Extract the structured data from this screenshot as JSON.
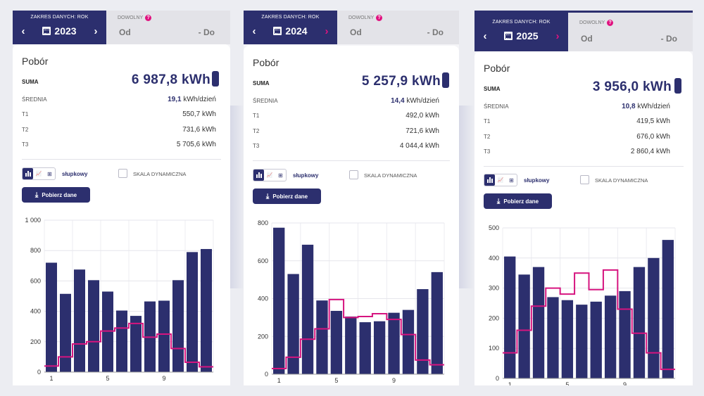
{
  "common": {
    "range_label": "ZAKRES DANYCH: ROK",
    "free_label": "DOWOLNY",
    "from_label": "Od",
    "to_label": "- Do",
    "card_title": "Pobór",
    "sum_label": "SUMA",
    "avg_label": "ŚREDNIA",
    "avg_unit": "kWh/dzień",
    "t1_label": "T1",
    "t2_label": "T2",
    "t3_label": "T3",
    "chart_mode_label": "słupkowy",
    "dynamic_scale_label": "SKALA DYNAMICZNA",
    "download_label": "Pobierz dane",
    "help_icon": "?",
    "prev_icon": "‹",
    "next_icon": "›",
    "line_icon": "📈",
    "table_icon": "⊞",
    "download_icon": "⤓",
    "colors": {
      "bar": "#2c2f6e",
      "line": "#d6147f",
      "accent": "#e0127f"
    }
  },
  "panels": [
    {
      "year": "2023",
      "sum": "6 987,8 kWh",
      "avg_value": "19,1",
      "t1": "550,7 kWh",
      "t2": "731,6 kWh",
      "t3": "5 705,6 kWh"
    },
    {
      "year": "2024",
      "sum": "5 257,9 kWh",
      "avg_value": "14,4",
      "t1": "492,0 kWh",
      "t2": "721,6 kWh",
      "t3": "4 044,4 kWh"
    },
    {
      "year": "2025",
      "sum": "3 956,0 kWh",
      "avg_value": "10,8",
      "t1": "419,5 kWh",
      "t2": "676,0 kWh",
      "t3": "2 860,4 kWh"
    }
  ],
  "chart_data": [
    {
      "type": "bar",
      "x": [
        1,
        2,
        3,
        4,
        5,
        6,
        7,
        8,
        9,
        10,
        11,
        12
      ],
      "x_tick_labels": [
        "1",
        "5",
        "9"
      ],
      "x_tick_values": [
        1,
        5,
        9
      ],
      "series": [
        {
          "values": [
            720,
            515,
            675,
            605,
            530,
            405,
            370,
            465,
            470,
            605,
            790,
            810
          ]
        },
        {
          "type": "line",
          "values": [
            40,
            100,
            185,
            200,
            270,
            290,
            320,
            230,
            250,
            155,
            65,
            35
          ]
        }
      ],
      "ylim": [
        0,
        1000
      ],
      "y_tick_values": [
        0,
        200,
        400,
        600,
        800,
        1000
      ],
      "y_tick_labels": [
        "0",
        "200",
        "400",
        "600",
        "800",
        "1 000"
      ]
    },
    {
      "type": "bar",
      "x": [
        1,
        2,
        3,
        4,
        5,
        6,
        7,
        8,
        9,
        10,
        11,
        12
      ],
      "x_tick_labels": [
        "1",
        "5",
        "9"
      ],
      "x_tick_values": [
        1,
        5,
        9
      ],
      "series": [
        {
          "values": [
            775,
            530,
            685,
            390,
            335,
            305,
            275,
            280,
            325,
            340,
            450,
            540
          ]
        },
        {
          "type": "line",
          "values": [
            30,
            90,
            185,
            240,
            395,
            300,
            305,
            320,
            290,
            210,
            75,
            50
          ]
        }
      ],
      "ylim": [
        0,
        800
      ],
      "y_tick_values": [
        0,
        200,
        400,
        600,
        800
      ],
      "y_tick_labels": [
        "0",
        "200",
        "400",
        "600",
        "800"
      ]
    },
    {
      "type": "bar",
      "x": [
        1,
        2,
        3,
        4,
        5,
        6,
        7,
        8,
        9,
        10,
        11,
        12
      ],
      "x_tick_labels": [
        "1",
        "5",
        "9"
      ],
      "x_tick_values": [
        1,
        5,
        9
      ],
      "series": [
        {
          "values": [
            405,
            345,
            370,
            270,
            260,
            245,
            255,
            275,
            290,
            370,
            400,
            460
          ]
        },
        {
          "type": "line",
          "values": [
            85,
            160,
            240,
            300,
            280,
            350,
            295,
            360,
            230,
            150,
            85,
            30
          ]
        }
      ],
      "ylim": [
        0,
        500
      ],
      "y_tick_values": [
        0,
        100,
        200,
        300,
        400,
        500
      ],
      "y_tick_labels": [
        "0",
        "100",
        "200",
        "300",
        "400",
        "500"
      ]
    }
  ]
}
